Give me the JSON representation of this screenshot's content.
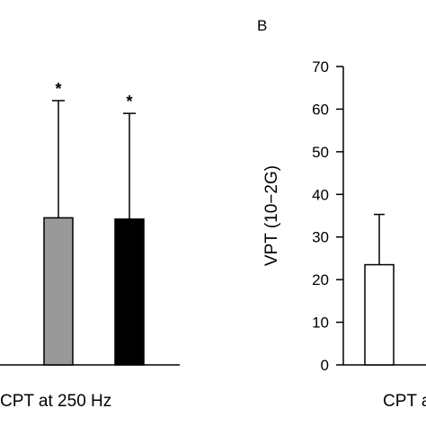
{
  "chart_data": [
    {
      "type": "bar",
      "panel": "",
      "xlabel": "CPT at 250 Hz",
      "ylabel": "",
      "categories": [
        "",
        ""
      ],
      "values": [
        34.5,
        34.2
      ],
      "errors": [
        27.5,
        24.8
      ],
      "annotations": [
        "*",
        "*"
      ],
      "colors": [
        "#999999",
        "#000000"
      ],
      "ylim": [
        0,
        70
      ],
      "grid": false
    },
    {
      "type": "bar",
      "panel": "B",
      "xlabel": "CPT a",
      "ylabel": "VPT (10−2G)",
      "yticks": [
        "0",
        "10",
        "20",
        "30",
        "40",
        "50",
        "60",
        "70"
      ],
      "categories": [
        ""
      ],
      "values": [
        23.5
      ],
      "errors": [
        11.8
      ],
      "colors": [
        "#ffffff"
      ],
      "ylim": [
        0,
        70
      ],
      "grid": false
    }
  ]
}
